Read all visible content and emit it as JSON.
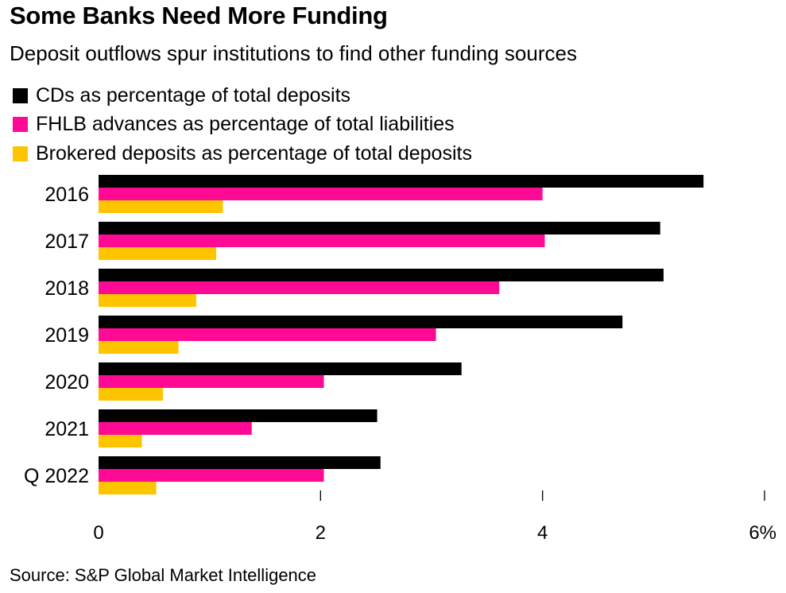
{
  "title": "Some Banks Need More Funding",
  "subtitle": "Deposit outflows spur institutions to find other funding sources",
  "source": "Source: S&P Global Market Intelligence",
  "colors": {
    "cds": "#000000",
    "fhlb": "#ff0a94",
    "brokered": "#ffc400"
  },
  "chart_data": {
    "type": "bar",
    "orientation": "horizontal",
    "categories": [
      "2016",
      "2017",
      "2018",
      "2019",
      "2020",
      "2021",
      "Q 2022"
    ],
    "series": [
      {
        "name": "CDs as percentage of total deposits",
        "color": "#000000",
        "values": [
          5.45,
          5.06,
          5.09,
          4.72,
          3.27,
          2.51,
          2.54
        ]
      },
      {
        "name": "FHLB advances as percentage of total liabilities",
        "color": "#ff0a94",
        "values": [
          4.0,
          4.02,
          3.61,
          3.04,
          2.03,
          1.38,
          2.03
        ]
      },
      {
        "name": "Brokered deposits as percentage of total deposits",
        "color": "#ffc400",
        "values": [
          1.12,
          1.06,
          0.88,
          0.72,
          0.58,
          0.39,
          0.52
        ]
      }
    ],
    "xticks": [
      "0",
      "2",
      "4",
      "6%"
    ],
    "xlim": [
      0,
      6
    ],
    "grid": false,
    "legend_position": "top-left"
  }
}
